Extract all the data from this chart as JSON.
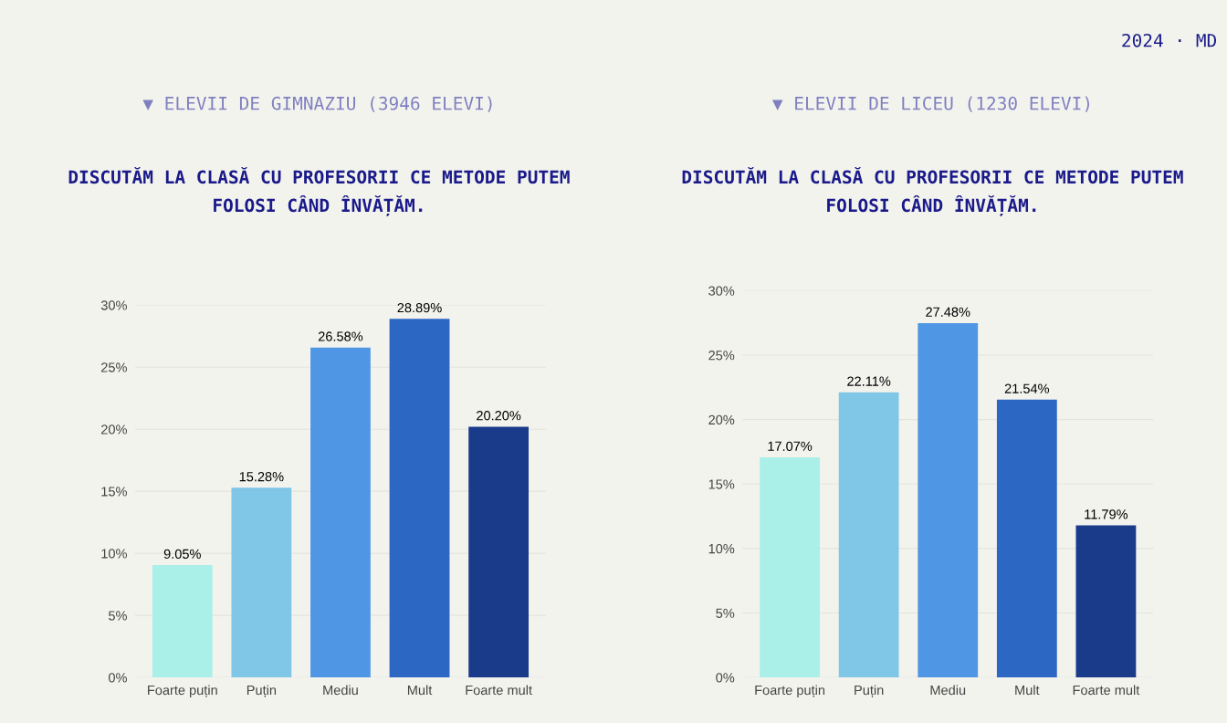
{
  "chart_data": [
    {
      "type": "bar",
      "subtitle": "▼ ELEVII DE GIMNAZIU (3946 ELEVI)",
      "title": "DISCUTĂM LA CLASĂ CU PROFESORII CE METODE PUTEM\nFOLOSI CÂND ÎNVĂȚĂM.",
      "categories": [
        "Foarte puțin",
        "Puțin",
        "Mediu",
        "Mult",
        "Foarte mult"
      ],
      "values": [
        9.05,
        15.28,
        26.58,
        28.89,
        20.2
      ],
      "value_labels": [
        "9.05%",
        "15.28%",
        "26.58%",
        "28.89%",
        "20.20%"
      ],
      "colors": [
        "#aaf0e8",
        "#80c6e6",
        "#4f97e4",
        "#2c67c4",
        "#1a3a8a"
      ],
      "ylim": [
        0,
        30
      ],
      "yticks": [
        {
          "value": 0,
          "label": "0%"
        },
        {
          "value": 5,
          "label": "5%"
        },
        {
          "value": 10,
          "label": "10%"
        },
        {
          "value": 15,
          "label": "15%"
        },
        {
          "value": 20,
          "label": "20%"
        },
        {
          "value": 25,
          "label": "25%"
        },
        {
          "value": 30,
          "label": "30%"
        }
      ],
      "grid": "y"
    },
    {
      "type": "bar",
      "subtitle": "▼ ELEVII DE LICEU (1230 ELEVI)",
      "title": "DISCUTĂM LA CLASĂ CU PROFESORII CE METODE PUTEM\nFOLOSI CÂND ÎNVĂȚĂM.",
      "categories": [
        "Foarte puțin",
        "Puțin",
        "Mediu",
        "Mult",
        "Foarte mult"
      ],
      "values": [
        17.07,
        22.11,
        27.48,
        21.54,
        11.79
      ],
      "value_labels": [
        "17.07%",
        "22.11%",
        "27.48%",
        "21.54%",
        "11.79%"
      ],
      "colors": [
        "#aaf0e8",
        "#80c6e6",
        "#4f97e4",
        "#2c67c4",
        "#1a3a8a"
      ],
      "ylim": [
        0,
        30
      ],
      "yticks": [
        {
          "value": 0,
          "label": "0%"
        },
        {
          "value": 5,
          "label": "5%"
        },
        {
          "value": 10,
          "label": "10%"
        },
        {
          "value": 15,
          "label": "15%"
        },
        {
          "value": 20,
          "label": "20%"
        },
        {
          "value": 25,
          "label": "25%"
        },
        {
          "value": 30,
          "label": "30%"
        }
      ],
      "grid": "y",
      "annotations": [
        "2024 · MD"
      ]
    }
  ]
}
